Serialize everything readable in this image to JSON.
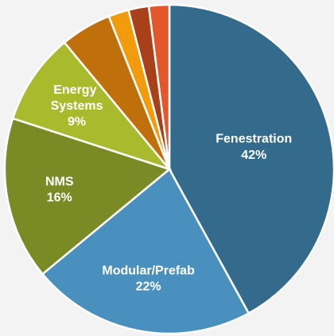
{
  "chart_data": {
    "type": "pie",
    "categories": [
      "Fenestration",
      "Modular/Prefab",
      "NMS",
      "Energy Systems",
      null,
      null,
      null,
      null
    ],
    "values": [
      42,
      22,
      16,
      9,
      5,
      2,
      2,
      2
    ],
    "value_labels": [
      "42%",
      "22%",
      "16%",
      "9%",
      null,
      null,
      null,
      null
    ],
    "colors": [
      "#346a8c",
      "#4a90bf",
      "#7a8a25",
      "#a9bb2d",
      "#c0700a",
      "#f29b0c",
      "#a8401a",
      "#e2582a"
    ]
  }
}
